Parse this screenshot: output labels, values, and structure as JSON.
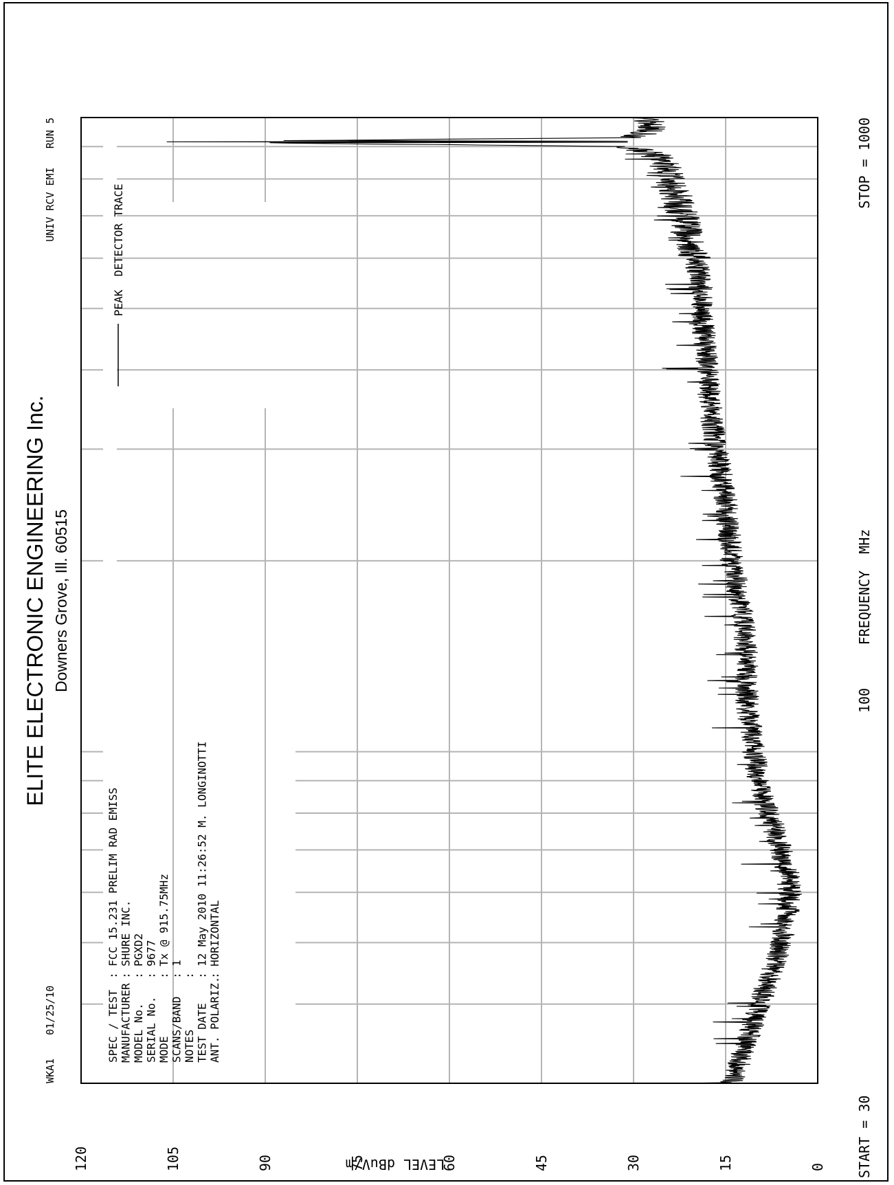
{
  "page_header": {
    "id_code": "WKA1",
    "date_code": "01/25/10",
    "run_info": "UNIV RCV EMI   RUN 5"
  },
  "company": {
    "name": "ELITE ELECTRONIC ENGINEERING Inc.",
    "address": "Downers Grove, Ill. 60515"
  },
  "test_info": [
    {
      "label": "SPEC / TEST",
      "value": "FCC 15.231 PRELIM RAD EMISS"
    },
    {
      "label": "MANUFACTURER",
      "value": "SHURE INC."
    },
    {
      "label": "MODEL No.",
      "value": "PGXD2"
    },
    {
      "label": "SERIAL No.",
      "value": "9677"
    },
    {
      "label": "MODE",
      "value": "Tx @ 915.75MHz"
    },
    {
      "label": "SCANS/BAND",
      "value": "1"
    },
    {
      "label": "NOTES",
      "value": ""
    },
    {
      "label": "TEST DATE",
      "value": "12 May 2010 11:26:52  M. LONGINOTTI"
    },
    {
      "label": "ANT. POLARIZ.",
      "value": "HORIZONTAL"
    }
  ],
  "chart_data": {
    "type": "line",
    "xscale": "log",
    "xlim": [
      30,
      1000
    ],
    "ylim": [
      0,
      120
    ],
    "xlabel": "FREQUENCY  MHz",
    "ylabel": "LEVEL dBuV/m",
    "y_ticks": [
      120,
      105,
      90,
      75,
      60,
      45,
      30,
      15,
      0
    ],
    "x_tick_labels": {
      "start": "START = 30",
      "mid": "100",
      "stop": "STOP = 1000"
    },
    "grid": true,
    "legend": {
      "label": "PEAK  DETECTOR TRACE",
      "placement": "top-right"
    },
    "series": [
      {
        "name": "PEAK  DETECTOR TRACE",
        "x": [
          30,
          32,
          35,
          40,
          45,
          50,
          55,
          60,
          65,
          70,
          75,
          80,
          85,
          90,
          95,
          100,
          110,
          120,
          140,
          160,
          180,
          200,
          250,
          300,
          350,
          400,
          450,
          500,
          550,
          600,
          650,
          700,
          750,
          800,
          850,
          880,
          900,
          915.75,
          930,
          950,
          970,
          1000
        ],
        "y": [
          14,
          13,
          11.5,
          9.5,
          7.5,
          6,
          5,
          4.5,
          5,
          6,
          7,
          8,
          9,
          9.5,
          10,
          10.5,
          11,
          11.5,
          11.5,
          12,
          13,
          14,
          15,
          16.5,
          17.5,
          18,
          18.5,
          19,
          19,
          20,
          21,
          22,
          23,
          24,
          25,
          27,
          31,
          106,
          30,
          28,
          27,
          28
        ]
      }
    ],
    "colors": {
      "trace": "#000000",
      "grid": "#b4b4b4",
      "frame": "#000000"
    }
  }
}
